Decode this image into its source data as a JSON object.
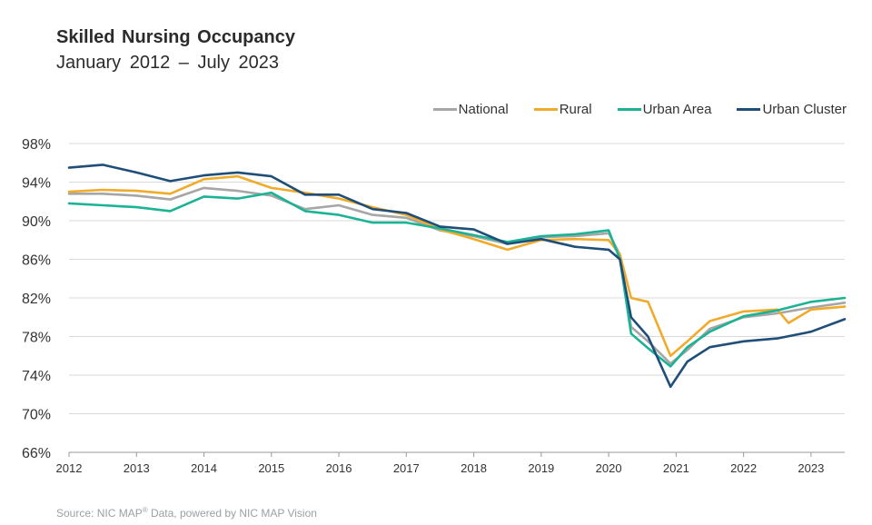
{
  "chart_data": {
    "type": "line",
    "title": "Skilled Nursing Occupancy",
    "subtitle": "January 2012 – July 2023",
    "ylim": [
      66,
      98
    ],
    "y_ticks": [
      "98%",
      "94%",
      "90%",
      "86%",
      "82%",
      "78%",
      "74%",
      "70%",
      "66%"
    ],
    "x_ticks": [
      "2012",
      "2013",
      "2014",
      "2015",
      "2016",
      "2017",
      "2018",
      "2019",
      "2020",
      "2021",
      "2022",
      "2023"
    ],
    "xlim": [
      "2012-01",
      "2023-07"
    ],
    "grid": "horizontal",
    "legend": "top-right",
    "series": [
      {
        "name": "National",
        "color": "#a6a6a6",
        "points": [
          [
            "2012-01",
            92.8
          ],
          [
            "2012-07",
            92.8
          ],
          [
            "2013-01",
            92.6
          ],
          [
            "2013-07",
            92.2
          ],
          [
            "2014-01",
            93.4
          ],
          [
            "2014-07",
            93.1
          ],
          [
            "2015-01",
            92.6
          ],
          [
            "2015-07",
            91.2
          ],
          [
            "2016-01",
            91.6
          ],
          [
            "2016-07",
            90.6
          ],
          [
            "2017-01",
            90.3
          ],
          [
            "2017-07",
            89.0
          ],
          [
            "2018-01",
            88.4
          ],
          [
            "2018-07",
            87.6
          ],
          [
            "2019-01",
            88.3
          ],
          [
            "2019-07",
            88.4
          ],
          [
            "2020-01",
            88.7
          ],
          [
            "2020-03",
            86.5
          ],
          [
            "2020-05",
            79.0
          ],
          [
            "2020-08",
            77.5
          ],
          [
            "2020-12",
            75.2
          ],
          [
            "2021-03",
            76.6
          ],
          [
            "2021-07",
            78.8
          ],
          [
            "2022-01",
            80.0
          ],
          [
            "2022-07",
            80.4
          ],
          [
            "2023-01",
            81.0
          ],
          [
            "2023-07",
            81.5
          ]
        ]
      },
      {
        "name": "Rural",
        "color": "#f0ab2b",
        "points": [
          [
            "2012-01",
            93.0
          ],
          [
            "2012-07",
            93.2
          ],
          [
            "2013-01",
            93.1
          ],
          [
            "2013-07",
            92.8
          ],
          [
            "2014-01",
            94.3
          ],
          [
            "2014-07",
            94.6
          ],
          [
            "2015-01",
            93.4
          ],
          [
            "2015-07",
            92.9
          ],
          [
            "2016-01",
            92.3
          ],
          [
            "2016-07",
            91.4
          ],
          [
            "2017-01",
            90.6
          ],
          [
            "2017-07",
            89.1
          ],
          [
            "2018-01",
            88.1
          ],
          [
            "2018-07",
            87.0
          ],
          [
            "2019-01",
            88.0
          ],
          [
            "2019-07",
            88.1
          ],
          [
            "2020-01",
            88.0
          ],
          [
            "2020-03",
            86.5
          ],
          [
            "2020-05",
            82.0
          ],
          [
            "2020-08",
            81.6
          ],
          [
            "2020-12",
            76.0
          ],
          [
            "2021-03",
            77.5
          ],
          [
            "2021-07",
            79.6
          ],
          [
            "2022-01",
            80.6
          ],
          [
            "2022-07",
            80.8
          ],
          [
            "2022-09",
            79.4
          ],
          [
            "2023-01",
            80.8
          ],
          [
            "2023-07",
            81.1
          ]
        ]
      },
      {
        "name": "Urban Area",
        "color": "#1bb394",
        "points": [
          [
            "2012-01",
            91.8
          ],
          [
            "2012-07",
            91.6
          ],
          [
            "2013-01",
            91.4
          ],
          [
            "2013-07",
            91.0
          ],
          [
            "2014-01",
            92.5
          ],
          [
            "2014-07",
            92.3
          ],
          [
            "2015-01",
            92.9
          ],
          [
            "2015-07",
            91.0
          ],
          [
            "2016-01",
            90.6
          ],
          [
            "2016-07",
            89.8
          ],
          [
            "2017-01",
            89.8
          ],
          [
            "2017-07",
            89.2
          ],
          [
            "2018-01",
            88.5
          ],
          [
            "2018-07",
            87.8
          ],
          [
            "2019-01",
            88.4
          ],
          [
            "2019-07",
            88.6
          ],
          [
            "2020-01",
            89.0
          ],
          [
            "2020-03",
            86.0
          ],
          [
            "2020-05",
            78.3
          ],
          [
            "2020-08",
            76.8
          ],
          [
            "2020-12",
            74.9
          ],
          [
            "2021-03",
            76.9
          ],
          [
            "2021-07",
            78.5
          ],
          [
            "2022-01",
            80.1
          ],
          [
            "2022-07",
            80.7
          ],
          [
            "2023-01",
            81.6
          ],
          [
            "2023-07",
            82.0
          ]
        ]
      },
      {
        "name": "Urban Cluster",
        "color": "#1f4e79",
        "points": [
          [
            "2012-01",
            95.5
          ],
          [
            "2012-07",
            95.8
          ],
          [
            "2013-01",
            95.0
          ],
          [
            "2013-07",
            94.1
          ],
          [
            "2014-01",
            94.7
          ],
          [
            "2014-07",
            95.0
          ],
          [
            "2015-01",
            94.6
          ],
          [
            "2015-07",
            92.7
          ],
          [
            "2016-01",
            92.7
          ],
          [
            "2016-07",
            91.2
          ],
          [
            "2017-01",
            90.8
          ],
          [
            "2017-07",
            89.4
          ],
          [
            "2018-01",
            89.1
          ],
          [
            "2018-07",
            87.6
          ],
          [
            "2019-01",
            88.1
          ],
          [
            "2019-07",
            87.3
          ],
          [
            "2020-01",
            87.0
          ],
          [
            "2020-03",
            86.0
          ],
          [
            "2020-05",
            80.0
          ],
          [
            "2020-08",
            78.0
          ],
          [
            "2020-12",
            72.8
          ],
          [
            "2021-03",
            75.4
          ],
          [
            "2021-07",
            76.9
          ],
          [
            "2022-01",
            77.5
          ],
          [
            "2022-07",
            77.8
          ],
          [
            "2023-01",
            78.5
          ],
          [
            "2023-07",
            79.8
          ]
        ]
      }
    ]
  },
  "source": {
    "prefix": "Source: NIC MAP",
    "reg": "®",
    "suffix": " Data, powered  by NIC MAP Vision"
  }
}
